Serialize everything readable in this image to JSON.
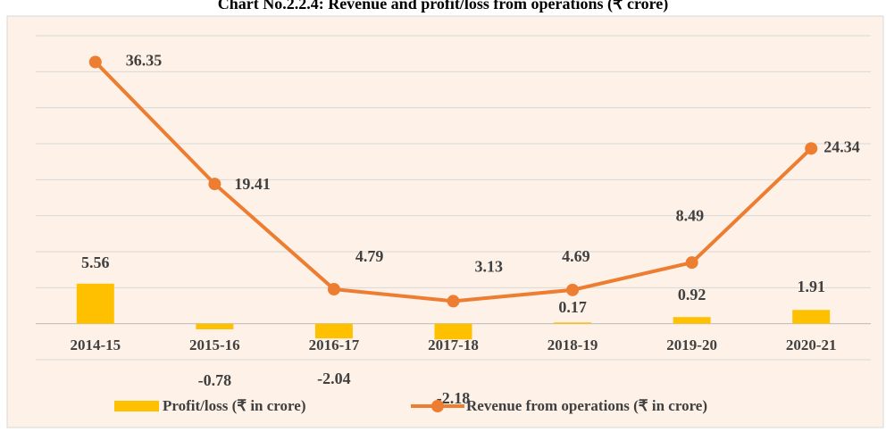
{
  "chart_data": {
    "type": "combo",
    "title": "Chart No.2.2.4: Revenue and profit/loss from operations (₹ crore)",
    "categories": [
      "2014-15",
      "2015-16",
      "2016-17",
      "2017-18",
      "2018-19",
      "2019-20",
      "2020-21"
    ],
    "series": [
      {
        "name": "Profit/loss (₹ in crore)",
        "type": "bar",
        "color": "#ffc000",
        "values": [
          5.56,
          -0.78,
          -2.04,
          -2.18,
          0.17,
          0.92,
          1.91
        ]
      },
      {
        "name": "Revenue from operations (₹ in crore)",
        "type": "line",
        "color": "#ed7d31",
        "values": [
          36.35,
          19.41,
          4.79,
          3.13,
          4.69,
          8.49,
          24.34
        ]
      }
    ],
    "ylim": [
      -5,
      40
    ],
    "yticks": [
      -5,
      0,
      5,
      10,
      15,
      20,
      25,
      30,
      35,
      40
    ],
    "grid": true
  }
}
